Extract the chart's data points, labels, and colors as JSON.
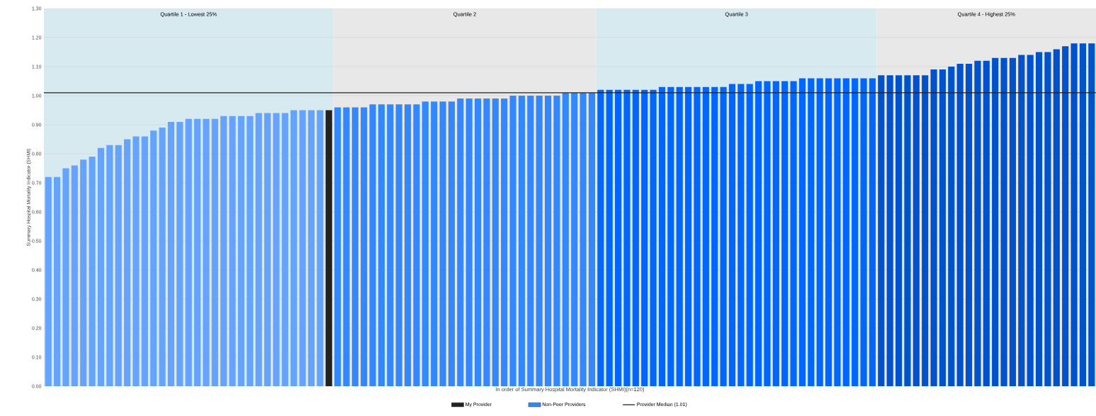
{
  "chart_data": {
    "type": "bar",
    "stacked": true,
    "xlabel": "In order of Summary Hospital Mortality Indicator (SHMI)(n=120)",
    "ylabel": "Summary Hospital Mortality Indicator (SHMI)",
    "categories": [
      null,
      null,
      null,
      null,
      null,
      null,
      null,
      null,
      null,
      null,
      null,
      null,
      null,
      null,
      null,
      null,
      null,
      null,
      null,
      null,
      null,
      null,
      null,
      null,
      null,
      null,
      null,
      null,
      null,
      null,
      null,
      null,
      null,
      null,
      null,
      null,
      null,
      null,
      null,
      null,
      null,
      null,
      null,
      null,
      null,
      null,
      null,
      null,
      null,
      null,
      null,
      null,
      null,
      null,
      null,
      null,
      null,
      null,
      null,
      null,
      null,
      null,
      null,
      null,
      null,
      null,
      null,
      null,
      null,
      null,
      null,
      null,
      null,
      null,
      null,
      null,
      null,
      null,
      null,
      null,
      null,
      null,
      null,
      null,
      null,
      null,
      null,
      null,
      null,
      null,
      null,
      null,
      null,
      null,
      null,
      null,
      null,
      null,
      null,
      null,
      null,
      null,
      null,
      null,
      null,
      null,
      null,
      null,
      null,
      null,
      null,
      null,
      null,
      null,
      null,
      null,
      null,
      null,
      null,
      null
    ],
    "ylim": [
      0,
      1.3
    ],
    "yticks": [
      {
        "value": 0,
        "label": "0.00"
      },
      {
        "value": 0.1,
        "label": "0.10"
      },
      {
        "value": 0.2,
        "label": "0.20"
      },
      {
        "value": 0.3,
        "label": "0.30"
      },
      {
        "value": 0.4,
        "label": "0.40"
      },
      {
        "value": 0.5,
        "label": "0.50"
      },
      {
        "value": 0.6,
        "label": "0.60"
      },
      {
        "value": 0.7,
        "label": "0.70"
      },
      {
        "value": 0.8,
        "label": "0.80"
      },
      {
        "value": 0.9,
        "label": "0.90"
      },
      {
        "value": 1.0,
        "label": "1.00"
      },
      {
        "value": 1.1,
        "label": "1.10"
      },
      {
        "value": 1.2,
        "label": "1.20"
      },
      {
        "value": 1.3,
        "label": "1.30"
      }
    ],
    "tick_labels": "y",
    "grid": "y",
    "legend": "bottom",
    "series": [
      {
        "name": "My Provider",
        "color": "#222222",
        "values": [
          null,
          null,
          null,
          null,
          null,
          null,
          null,
          null,
          null,
          null,
          null,
          null,
          null,
          null,
          null,
          null,
          null,
          null,
          null,
          null,
          null,
          null,
          null,
          null,
          null,
          null,
          null,
          null,
          null,
          null,
          null,
          null,
          0.95,
          null,
          null,
          null,
          null,
          null,
          null,
          null,
          null,
          null,
          null,
          null,
          null,
          null,
          null,
          null,
          null,
          null,
          null,
          null,
          null,
          null,
          null,
          null,
          null,
          null,
          null,
          null,
          null,
          null,
          null,
          null,
          null,
          null,
          null,
          null,
          null,
          null,
          null,
          null,
          null,
          null,
          null,
          null,
          null,
          null,
          null,
          null,
          null,
          null,
          null,
          null,
          null,
          null,
          null,
          null,
          null,
          null,
          null,
          null,
          null,
          null,
          null,
          null,
          null,
          null,
          null,
          null,
          null,
          null,
          null,
          null,
          null,
          null,
          null,
          null,
          null,
          null,
          null,
          null,
          null,
          null,
          null,
          null,
          null,
          null,
          null,
          null
        ]
      },
      {
        "name": "Non-Peer Providers",
        "values": [
          0.72,
          0.72,
          0.75,
          0.76,
          0.78,
          0.79,
          0.82,
          0.83,
          0.83,
          0.85,
          0.86,
          0.86,
          0.88,
          0.89,
          0.91,
          0.91,
          0.92,
          0.92,
          0.92,
          0.92,
          0.93,
          0.93,
          0.93,
          0.93,
          0.94,
          0.94,
          0.94,
          0.94,
          0.95,
          0.95,
          0.95,
          0.95,
          null,
          0.96,
          0.96,
          0.96,
          0.96,
          0.97,
          0.97,
          0.97,
          0.97,
          0.97,
          0.97,
          0.98,
          0.98,
          0.98,
          0.98,
          0.99,
          0.99,
          0.99,
          0.99,
          0.99,
          0.99,
          1.0,
          1.0,
          1.0,
          1.0,
          1.0,
          1.0,
          1.01,
          1.01,
          1.01,
          1.01,
          1.02,
          1.02,
          1.02,
          1.02,
          1.02,
          1.02,
          1.02,
          1.03,
          1.03,
          1.03,
          1.03,
          1.03,
          1.03,
          1.03,
          1.03,
          1.04,
          1.04,
          1.04,
          1.05,
          1.05,
          1.05,
          1.05,
          1.05,
          1.06,
          1.06,
          1.06,
          1.06,
          1.06,
          1.06,
          1.06,
          1.06,
          1.06,
          1.07,
          1.07,
          1.07,
          1.07,
          1.07,
          1.07,
          1.09,
          1.09,
          1.1,
          1.11,
          1.11,
          1.12,
          1.12,
          1.13,
          1.13,
          1.13,
          1.14,
          1.14,
          1.15,
          1.15,
          1.16,
          1.17,
          1.18,
          1.18,
          1.18
        ],
        "colors": [
          "#66a3ff",
          "#66a3ff",
          "#66a3ff",
          "#66a3ff",
          "#66a3ff",
          "#66a3ff",
          "#66a3ff",
          "#66a3ff",
          "#66a3ff",
          "#66a3ff",
          "#66a3ff",
          "#66a3ff",
          "#66a3ff",
          "#66a3ff",
          "#66a3ff",
          "#66a3ff",
          "#66a3ff",
          "#66a3ff",
          "#66a3ff",
          "#66a3ff",
          "#66a3ff",
          "#66a3ff",
          "#66a3ff",
          "#66a3ff",
          "#66a3ff",
          "#66a3ff",
          "#66a3ff",
          "#66a3ff",
          "#66a3ff",
          "#66a3ff",
          "#66a3ff",
          "#66a3ff",
          null,
          "#3388ff",
          "#3388ff",
          "#3388ff",
          "#3388ff",
          "#3388ff",
          "#3388ff",
          "#3388ff",
          "#3388ff",
          "#3388ff",
          "#3388ff",
          "#3388ff",
          "#3388ff",
          "#3388ff",
          "#3388ff",
          "#3388ff",
          "#3388ff",
          "#3388ff",
          "#3388ff",
          "#3388ff",
          "#3388ff",
          "#3388ff",
          "#3388ff",
          "#3388ff",
          "#3388ff",
          "#3388ff",
          "#3388ff",
          "#3388ff",
          "#3388ff",
          "#3388ff",
          "#3388ff",
          "#0066ff",
          "#0066ff",
          "#0066ff",
          "#0066ff",
          "#0066ff",
          "#0066ff",
          "#0066ff",
          "#0066ff",
          "#0066ff",
          "#0066ff",
          "#0066ff",
          "#0066ff",
          "#0066ff",
          "#0066ff",
          "#0066ff",
          "#0066ff",
          "#0066ff",
          "#0066ff",
          "#0066ff",
          "#0066ff",
          "#0066ff",
          "#0066ff",
          "#0066ff",
          "#0066ff",
          "#0066ff",
          "#0066ff",
          "#0066ff",
          "#0066ff",
          "#0066ff",
          "#0066ff",
          "#0066ff",
          "#0066ff",
          "#0052cc",
          "#0052cc",
          "#0052cc",
          "#0052cc",
          "#0052cc",
          "#0052cc",
          "#0052cc",
          "#0052cc",
          "#0052cc",
          "#0052cc",
          "#0052cc",
          "#0052cc",
          "#0052cc",
          "#0052cc",
          "#0052cc",
          "#0052cc",
          "#0052cc",
          "#0052cc",
          "#0052cc",
          "#0052cc",
          "#0052cc",
          "#0052cc",
          "#0052cc",
          "#0052cc",
          "#0052cc"
        ]
      }
    ],
    "ref_lines": [
      {
        "axis": "y",
        "value": 1.01,
        "label": "Provider Median (1.01)",
        "color": "#222222"
      }
    ],
    "annotations": [
      "Quartile 1 - Lowest 25%",
      "Quartile 2",
      "Quartile 3",
      "Quartile 4 - Highest 25%"
    ]
  }
}
